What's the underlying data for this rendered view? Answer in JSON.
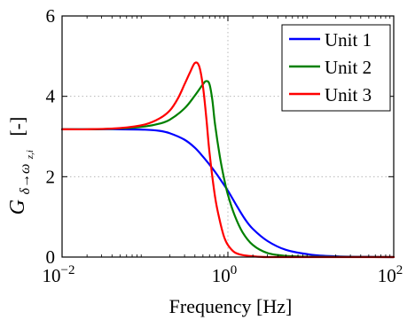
{
  "chart_data": {
    "type": "line",
    "xlabel": "Frequency [Hz]",
    "ylabel": "[-]",
    "ylabel_symbol": "G",
    "ylabel_subscript": "δ→ω",
    "ylabel_subsubscript": "z,i",
    "xscale": "log",
    "xlim": [
      0.01,
      100
    ],
    "ylim": [
      0,
      6
    ],
    "x_ticks": [
      0.01,
      1,
      100
    ],
    "x_tick_base": "10",
    "x_tick_exponents": [
      "−2",
      "0",
      "2"
    ],
    "y_ticks": [
      0,
      2,
      4,
      6
    ],
    "y_tick_labels": [
      "0",
      "2",
      "4",
      "6"
    ],
    "grid": true,
    "legend_position": "top-right",
    "series": [
      {
        "name": "Unit 1",
        "color": "#0000ff",
        "x": [
          0.01,
          0.02,
          0.05,
          0.1,
          0.15,
          0.2,
          0.3,
          0.4,
          0.5,
          0.6,
          0.7,
          0.8,
          1.0,
          1.3,
          1.6,
          2.0,
          3.0,
          5.0,
          10,
          20,
          50,
          100
        ],
        "y": [
          3.18,
          3.18,
          3.18,
          3.17,
          3.14,
          3.08,
          2.92,
          2.72,
          2.5,
          2.3,
          2.12,
          1.95,
          1.65,
          1.25,
          0.95,
          0.7,
          0.4,
          0.18,
          0.06,
          0.02,
          0.005,
          0.0
        ]
      },
      {
        "name": "Unit 2",
        "color": "#008000",
        "x": [
          0.01,
          0.02,
          0.05,
          0.1,
          0.15,
          0.2,
          0.3,
          0.4,
          0.5,
          0.55,
          0.6,
          0.65,
          0.7,
          0.8,
          0.9,
          1.0,
          1.2,
          1.5,
          2.0,
          3.0,
          5.0,
          10,
          100
        ],
        "y": [
          3.18,
          3.18,
          3.2,
          3.25,
          3.32,
          3.42,
          3.7,
          4.02,
          4.3,
          4.38,
          4.3,
          3.9,
          3.3,
          2.5,
          1.95,
          1.55,
          1.05,
          0.62,
          0.3,
          0.1,
          0.03,
          0.01,
          0.0
        ]
      },
      {
        "name": "Unit 3",
        "color": "#ff0000",
        "x": [
          0.01,
          0.02,
          0.05,
          0.1,
          0.15,
          0.2,
          0.25,
          0.3,
          0.35,
          0.4,
          0.45,
          0.5,
          0.55,
          0.6,
          0.7,
          0.8,
          0.9,
          1.0,
          1.2,
          1.5,
          2.0,
          3.0,
          10,
          100
        ],
        "y": [
          3.18,
          3.18,
          3.21,
          3.3,
          3.45,
          3.65,
          3.95,
          4.3,
          4.6,
          4.83,
          4.75,
          4.25,
          3.45,
          2.6,
          1.5,
          0.9,
          0.5,
          0.3,
          0.12,
          0.05,
          0.02,
          0.0,
          0.0,
          0.0
        ]
      }
    ]
  }
}
